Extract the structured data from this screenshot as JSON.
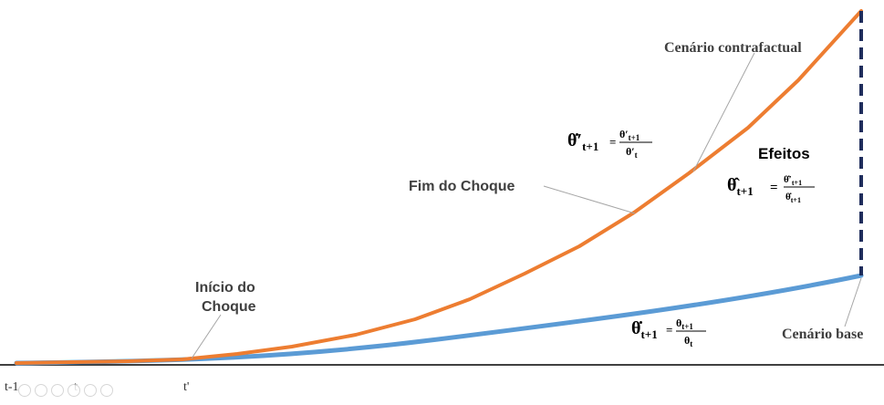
{
  "diagram": {
    "annotations": {
      "counterfactual": "Cenário contrafactual",
      "base": "Cenário  base",
      "shock_end": "Fim do Choque",
      "shock_start_line1": "Início do",
      "shock_start_line2": "Choque",
      "effects": "Efeitos"
    },
    "axis_ticks": [
      "t-1",
      "t",
      "t'"
    ],
    "formulas": {
      "counterfactual": {
        "lhs": "θ̇′",
        "lhs_sub": "t+1",
        "eq": "=",
        "num": "θ′",
        "num_sub": "t+1",
        "den": "θ′",
        "den_sub": "t"
      },
      "base": {
        "lhs": "θ̇",
        "lhs_sub": "t+1",
        "eq": "=",
        "num": "θ",
        "num_sub": "t+1",
        "den": "θ",
        "den_sub": "t"
      },
      "effects": {
        "lhs": "θ̂",
        "lhs_sub": "t+1",
        "eq": "=",
        "num": "θ̇′",
        "num_sub": "t+1",
        "den": "θ̇",
        "den_sub": "t+1"
      }
    },
    "colors": {
      "counterfactual_curve": "#ED7D31",
      "base_curve": "#5B9BD5",
      "effect_line": "#1F2D5C",
      "axis": "#000000",
      "leader": "#A6A6A6"
    }
  }
}
